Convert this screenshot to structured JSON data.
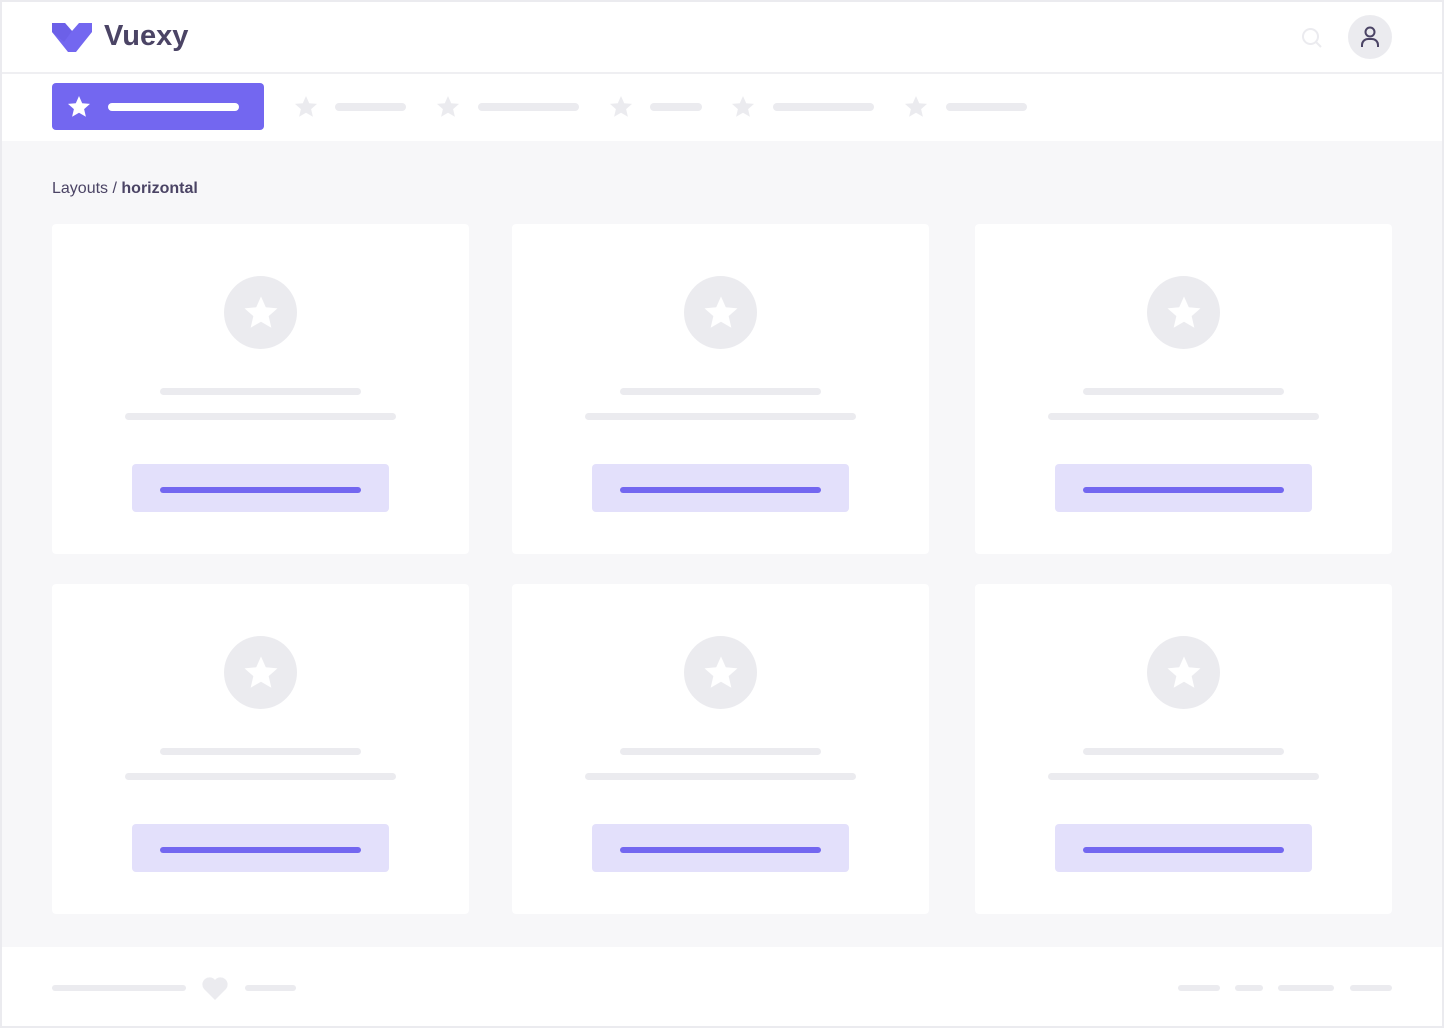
{
  "header": {
    "logo_text": "Vuexy",
    "search_icon": "search-icon",
    "avatar_icon": "user-icon"
  },
  "nav": {
    "active_icon": "star-icon",
    "item_count": 6
  },
  "breadcrumb": {
    "parent": "Layouts",
    "separator": " / ",
    "current": "horizontal"
  },
  "cards": [
    {
      "icon": "star-icon"
    },
    {
      "icon": "star-icon"
    },
    {
      "icon": "star-icon"
    },
    {
      "icon": "star-icon"
    },
    {
      "icon": "star-icon"
    },
    {
      "icon": "star-icon"
    }
  ],
  "footer": {
    "icon": "heart-icon"
  },
  "colors": {
    "primary": "#7367f0",
    "primary_light": "#e3e0fb",
    "placeholder": "#ebebef",
    "background": "#f7f7f9",
    "text": "#4b4465"
  }
}
